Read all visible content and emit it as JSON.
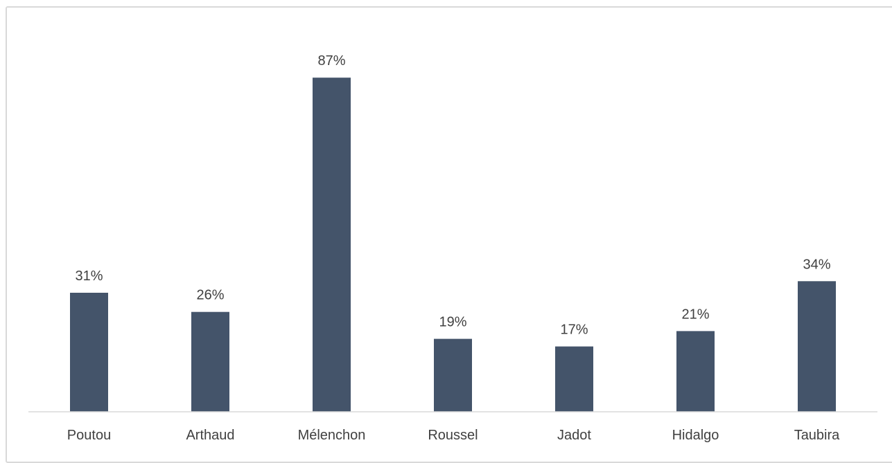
{
  "chart_data": {
    "type": "bar",
    "title": "",
    "xlabel": "",
    "ylabel": "",
    "categories": [
      "Poutou",
      "Arthaud",
      "Mélenchon",
      "Roussel",
      "Jadot",
      "Hidalgo",
      "Taubira"
    ],
    "values": [
      31,
      26,
      87,
      19,
      17,
      21,
      34
    ],
    "data_labels": [
      "31%",
      "26%",
      "87%",
      "19%",
      "17%",
      "21%",
      "34%"
    ],
    "unit": "%",
    "ylim": [
      0,
      100
    ],
    "grid": false,
    "legend": "none",
    "bar_color": "#44546a",
    "axis_color": "#d9d9d9",
    "text_color": "#404040"
  }
}
